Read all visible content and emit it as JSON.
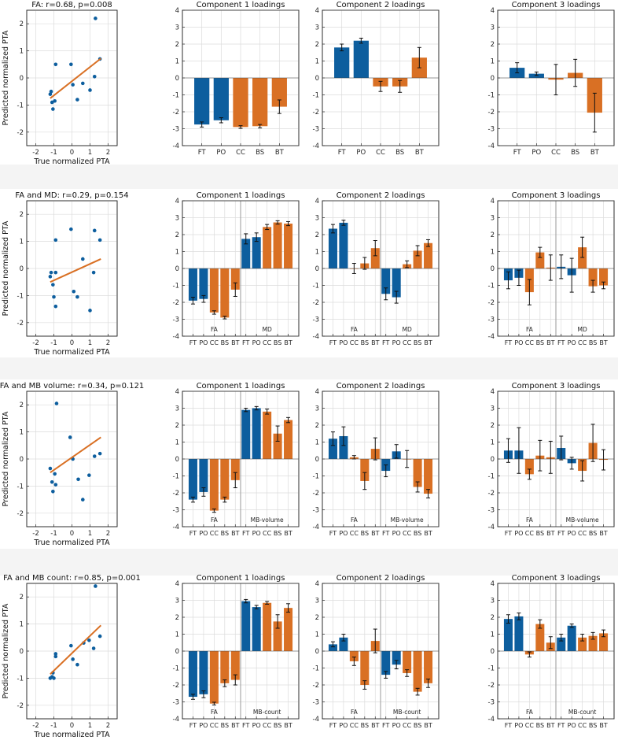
{
  "colors": {
    "blue": "#0d5e9e",
    "orange": "#d97024",
    "scatter": "#0d5e9e",
    "fit": "#d97024",
    "axis": "#262626",
    "grid": "#dcdcdc",
    "divider": "#9a9a9a",
    "band": "#f4f4f4"
  },
  "chart_data": [
    {
      "type": "scatter",
      "row": 0,
      "title": "FA: r=0.68, p=0.008",
      "xlabel": "True normalized PTA",
      "ylabel": "Predicted normalized PTA",
      "xlim": [
        -2.5,
        2.5
      ],
      "ylim": [
        -2.5,
        2.5
      ],
      "xticks": [
        -2,
        -1,
        0,
        1,
        2
      ],
      "yticks": [
        -2,
        -1,
        0,
        1,
        2
      ],
      "points": [
        [
          -1.2,
          -0.6
        ],
        [
          -1.15,
          -0.5
        ],
        [
          -1.1,
          -0.9
        ],
        [
          -1.05,
          -1.15
        ],
        [
          -0.95,
          -0.85
        ],
        [
          -0.9,
          0.5
        ],
        [
          -0.05,
          0.5
        ],
        [
          0.05,
          -0.25
        ],
        [
          0.3,
          -0.8
        ],
        [
          0.6,
          -0.2
        ],
        [
          1.0,
          -0.45
        ],
        [
          1.25,
          0.05
        ],
        [
          1.3,
          2.2
        ],
        [
          1.55,
          0.7
        ]
      ],
      "fit": {
        "x": [
          -1.2,
          1.6
        ],
        "y": [
          -0.75,
          0.72
        ]
      }
    },
    {
      "type": "bar",
      "row": 0,
      "title": "Component 1 loadings",
      "ylim": [
        -4,
        4
      ],
      "yticks": [
        -4,
        -3,
        -2,
        -1,
        0,
        1,
        2,
        3,
        4
      ],
      "categories": [
        "FT",
        "PO",
        "CC",
        "BS",
        "BT"
      ],
      "groups": [],
      "values": [
        -2.75,
        -2.5,
        -2.9,
        -2.85,
        -1.7
      ],
      "errors": [
        0.15,
        0.15,
        0.08,
        0.1,
        0.4
      ],
      "colors": [
        "blue",
        "blue",
        "orange",
        "orange",
        "orange"
      ]
    },
    {
      "type": "bar",
      "row": 0,
      "title": "Component 2 loadings",
      "ylim": [
        -4,
        4
      ],
      "yticks": [
        -4,
        -3,
        -2,
        -1,
        0,
        1,
        2,
        3,
        4
      ],
      "categories": [
        "FT",
        "PO",
        "CC",
        "BS",
        "BT"
      ],
      "groups": [],
      "values": [
        1.8,
        2.2,
        -0.5,
        -0.5,
        1.2
      ],
      "errors": [
        0.2,
        0.15,
        0.3,
        0.35,
        0.6
      ],
      "colors": [
        "blue",
        "blue",
        "orange",
        "orange",
        "orange"
      ]
    },
    {
      "type": "bar",
      "row": 0,
      "title": "Component 3 loadings",
      "ylim": [
        -4,
        4
      ],
      "yticks": [
        -4,
        -3,
        -2,
        -1,
        0,
        1,
        2,
        3,
        4
      ],
      "categories": [
        "FT",
        "PO",
        "CC",
        "BS",
        "BT"
      ],
      "groups": [],
      "values": [
        0.6,
        0.25,
        -0.1,
        0.3,
        -2.05
      ],
      "errors": [
        0.3,
        0.1,
        0.9,
        0.8,
        1.15
      ],
      "colors": [
        "blue",
        "blue",
        "orange",
        "orange",
        "orange"
      ]
    },
    {
      "type": "scatter",
      "row": 1,
      "title": "FA and MD: r=0.29, p=0.154",
      "xlabel": "True normalized PTA",
      "ylabel": "Predicted normalized PTA",
      "xlim": [
        -2.5,
        2.5
      ],
      "ylim": [
        -2.5,
        2.5
      ],
      "xticks": [
        -2,
        -1,
        0,
        1,
        2
      ],
      "yticks": [
        -2,
        -1,
        0,
        1,
        2
      ],
      "points": [
        [
          -1.2,
          -0.3
        ],
        [
          -1.15,
          -0.15
        ],
        [
          -1.05,
          -0.6
        ],
        [
          -1.0,
          -1.05
        ],
        [
          -0.9,
          -0.15
        ],
        [
          -0.9,
          1.05
        ],
        [
          -0.9,
          -1.4
        ],
        [
          -0.05,
          1.45
        ],
        [
          0.1,
          -0.85
        ],
        [
          0.3,
          -1.05
        ],
        [
          0.6,
          0.35
        ],
        [
          1.0,
          -1.55
        ],
        [
          1.2,
          -0.15
        ],
        [
          1.25,
          1.4
        ],
        [
          1.55,
          1.05
        ]
      ],
      "fit": {
        "x": [
          -1.2,
          1.6
        ],
        "y": [
          -0.5,
          0.35
        ]
      }
    },
    {
      "type": "bar",
      "row": 1,
      "title": "Component 1 loadings",
      "ylim": [
        -4,
        4
      ],
      "yticks": [
        -4,
        -3,
        -2,
        -1,
        0,
        1,
        2,
        3,
        4
      ],
      "categories": [
        "FT",
        "PO",
        "CC",
        "BS",
        "BT",
        "FT",
        "PO",
        "CC",
        "BS",
        "BT"
      ],
      "groups": [
        "FA",
        "MD"
      ],
      "values": [
        -1.9,
        -1.8,
        -2.6,
        -2.9,
        -1.25,
        1.75,
        1.85,
        2.45,
        2.72,
        2.65
      ],
      "errors": [
        0.2,
        0.2,
        0.1,
        0.08,
        0.4,
        0.3,
        0.25,
        0.15,
        0.1,
        0.12
      ],
      "colors": [
        "blue",
        "blue",
        "orange",
        "orange",
        "orange",
        "blue",
        "blue",
        "orange",
        "orange",
        "orange"
      ]
    },
    {
      "type": "bar",
      "row": 1,
      "title": "Component 2 loadings",
      "ylim": [
        -4,
        4
      ],
      "yticks": [
        -4,
        -3,
        -2,
        -1,
        0,
        1,
        2,
        3,
        4
      ],
      "categories": [
        "FT",
        "PO",
        "CC",
        "BS",
        "BT",
        "FT",
        "PO",
        "CC",
        "BS",
        "BT"
      ],
      "groups": [
        "FA",
        "MD"
      ],
      "values": [
        2.35,
        2.7,
        0.0,
        0.3,
        1.2,
        -1.5,
        -1.7,
        0.25,
        1.05,
        1.5
      ],
      "errors": [
        0.25,
        0.15,
        0.3,
        0.35,
        0.45,
        0.35,
        0.35,
        0.2,
        0.3,
        0.2
      ],
      "colors": [
        "blue",
        "blue",
        "orange",
        "orange",
        "orange",
        "blue",
        "blue",
        "orange",
        "orange",
        "orange"
      ]
    },
    {
      "type": "bar",
      "row": 1,
      "title": "Component 3 loadings",
      "ylim": [
        -4,
        4
      ],
      "yticks": [
        -4,
        -3,
        -2,
        -1,
        0,
        1,
        2,
        3,
        4
      ],
      "categories": [
        "FT",
        "PO",
        "CC",
        "BS",
        "BT",
        "FT",
        "PO",
        "CC",
        "BS",
        "BT"
      ],
      "groups": [
        "FA",
        "MD"
      ],
      "values": [
        -0.7,
        -0.55,
        -1.4,
        0.95,
        0.05,
        0.1,
        -0.4,
        1.25,
        -1.05,
        -1.0
      ],
      "errors": [
        0.5,
        0.45,
        0.75,
        0.3,
        0.75,
        0.7,
        1.0,
        0.6,
        0.35,
        0.2
      ],
      "colors": [
        "blue",
        "blue",
        "orange",
        "orange",
        "orange",
        "blue",
        "blue",
        "orange",
        "orange",
        "orange"
      ]
    },
    {
      "type": "scatter",
      "row": 2,
      "title": "FA and MB volume: r=0.34, p=0.121",
      "xlabel": "True normalized PTA",
      "ylabel": "Predicted normalized PTA",
      "xlim": [
        -2.5,
        2.5
      ],
      "ylim": [
        -2.5,
        2.5
      ],
      "xticks": [
        -2,
        -1,
        0,
        1,
        2
      ],
      "yticks": [
        -2,
        -1,
        0,
        1,
        2
      ],
      "points": [
        [
          -1.2,
          -0.35
        ],
        [
          -1.1,
          -0.85
        ],
        [
          -1.05,
          -1.2
        ],
        [
          -0.95,
          -0.55
        ],
        [
          -0.9,
          -0.95
        ],
        [
          -0.85,
          2.05
        ],
        [
          -0.1,
          0.8
        ],
        [
          0.05,
          0.0
        ],
        [
          0.35,
          -0.75
        ],
        [
          0.6,
          -1.5
        ],
        [
          0.95,
          -0.6
        ],
        [
          1.25,
          0.1
        ],
        [
          1.55,
          0.2
        ]
      ],
      "fit": {
        "x": [
          -1.2,
          1.6
        ],
        "y": [
          -0.5,
          0.8
        ]
      }
    },
    {
      "type": "bar",
      "row": 2,
      "title": "Component 1 loadings",
      "ylim": [
        -4,
        4
      ],
      "yticks": [
        -4,
        -3,
        -2,
        -1,
        0,
        1,
        2,
        3,
        4
      ],
      "categories": [
        "FT",
        "PO",
        "CC",
        "BS",
        "BT",
        "FT",
        "PO",
        "CC",
        "BS",
        "BT"
      ],
      "groups": [
        "FA",
        "MB-volume"
      ],
      "values": [
        -2.4,
        -1.95,
        -3.05,
        -2.4,
        -1.25,
        2.9,
        3.0,
        2.8,
        1.5,
        2.3
      ],
      "errors": [
        0.15,
        0.25,
        0.1,
        0.15,
        0.45,
        0.1,
        0.1,
        0.15,
        0.45,
        0.15
      ],
      "colors": [
        "blue",
        "blue",
        "orange",
        "orange",
        "orange",
        "blue",
        "blue",
        "orange",
        "orange",
        "orange"
      ]
    },
    {
      "type": "bar",
      "row": 2,
      "title": "Component 2 loadings",
      "ylim": [
        -4,
        4
      ],
      "yticks": [
        -4,
        -3,
        -2,
        -1,
        0,
        1,
        2,
        3,
        4
      ],
      "categories": [
        "FT",
        "PO",
        "CC",
        "BS",
        "BT",
        "FT",
        "PO",
        "CC",
        "BS",
        "BT"
      ],
      "groups": [
        "FA",
        "MB-volume"
      ],
      "values": [
        1.2,
        1.35,
        0.1,
        -1.3,
        0.6,
        -0.7,
        0.45,
        0.0,
        -1.65,
        -2.05
      ],
      "errors": [
        0.4,
        0.55,
        0.1,
        0.5,
        0.65,
        0.35,
        0.4,
        0.5,
        0.3,
        0.25
      ],
      "colors": [
        "blue",
        "blue",
        "orange",
        "orange",
        "orange",
        "blue",
        "blue",
        "orange",
        "orange",
        "orange"
      ]
    },
    {
      "type": "bar",
      "row": 2,
      "title": "Component 3 loadings",
      "ylim": [
        -4,
        4
      ],
      "yticks": [
        -4,
        -3,
        -2,
        -1,
        0,
        1,
        2,
        3,
        4
      ],
      "categories": [
        "FT",
        "PO",
        "CC",
        "BS",
        "BT",
        "FT",
        "PO",
        "CC",
        "BS",
        "BT"
      ],
      "groups": [
        "FA",
        "MB-volume"
      ],
      "values": [
        0.5,
        0.5,
        -0.9,
        0.2,
        0.1,
        0.65,
        -0.25,
        -0.7,
        0.95,
        -0.05
      ],
      "errors": [
        0.7,
        1.35,
        0.3,
        0.9,
        0.95,
        0.7,
        0.35,
        0.6,
        1.1,
        0.6
      ],
      "colors": [
        "blue",
        "blue",
        "orange",
        "orange",
        "orange",
        "blue",
        "blue",
        "orange",
        "orange",
        "orange"
      ]
    },
    {
      "type": "scatter",
      "row": 3,
      "title": "FA and MB count: r=0.85, p=0.001",
      "xlabel": "True normalized PTA",
      "ylabel": "Predicted normalized PTA",
      "xlim": [
        -2.5,
        2.5
      ],
      "ylim": [
        -2.5,
        2.5
      ],
      "xticks": [
        -2,
        -1,
        0,
        1,
        2
      ],
      "yticks": [
        -2,
        -1,
        0,
        1,
        2
      ],
      "points": [
        [
          -1.2,
          -1.0
        ],
        [
          -1.1,
          -0.95
        ],
        [
          -1.05,
          -0.8
        ],
        [
          -1.0,
          -1.0
        ],
        [
          -0.9,
          -0.2
        ],
        [
          -0.9,
          -0.1
        ],
        [
          -0.05,
          0.2
        ],
        [
          0.05,
          -0.3
        ],
        [
          0.3,
          -0.5
        ],
        [
          0.65,
          0.3
        ],
        [
          0.95,
          0.4
        ],
        [
          1.2,
          0.1
        ],
        [
          1.3,
          2.4
        ],
        [
          1.55,
          0.55
        ]
      ],
      "fit": {
        "x": [
          -1.2,
          1.6
        ],
        "y": [
          -0.85,
          0.95
        ]
      }
    },
    {
      "type": "bar",
      "row": 3,
      "title": "Component 1 loadings",
      "ylim": [
        -4,
        4
      ],
      "yticks": [
        -4,
        -3,
        -2,
        -1,
        0,
        1,
        2,
        3,
        4
      ],
      "categories": [
        "FT",
        "PO",
        "CC",
        "BS",
        "BT",
        "FT",
        "PO",
        "CC",
        "BS",
        "BT"
      ],
      "groups": [
        "FA",
        "MB-count"
      ],
      "values": [
        -2.7,
        -2.55,
        -3.1,
        -1.9,
        -1.7,
        2.95,
        2.6,
        2.85,
        1.75,
        2.55
      ],
      "errors": [
        0.15,
        0.2,
        0.08,
        0.2,
        0.3,
        0.1,
        0.1,
        0.08,
        0.4,
        0.25
      ],
      "colors": [
        "blue",
        "blue",
        "orange",
        "orange",
        "orange",
        "blue",
        "blue",
        "orange",
        "orange",
        "orange"
      ]
    },
    {
      "type": "bar",
      "row": 3,
      "title": "Component 2 loadings",
      "ylim": [
        -4,
        4
      ],
      "yticks": [
        -4,
        -3,
        -2,
        -1,
        0,
        1,
        2,
        3,
        4
      ],
      "categories": [
        "FT",
        "PO",
        "CC",
        "BS",
        "BT",
        "FT",
        "PO",
        "CC",
        "BS",
        "BT"
      ],
      "groups": [
        "FA",
        "MB-count"
      ],
      "values": [
        0.4,
        0.8,
        -0.6,
        -2.0,
        0.6,
        -1.4,
        -0.8,
        -1.3,
        -2.4,
        -1.9
      ],
      "errors": [
        0.15,
        0.2,
        0.25,
        0.25,
        0.7,
        0.2,
        0.25,
        0.2,
        0.2,
        0.25
      ],
      "colors": [
        "blue",
        "blue",
        "orange",
        "orange",
        "orange",
        "blue",
        "blue",
        "orange",
        "orange",
        "orange"
      ]
    },
    {
      "type": "bar",
      "row": 3,
      "title": "Component 3 loadings",
      "ylim": [
        -4,
        4
      ],
      "yticks": [
        -4,
        -3,
        -2,
        -1,
        0,
        1,
        2,
        3,
        4
      ],
      "categories": [
        "FT",
        "PO",
        "CC",
        "BS",
        "BT",
        "FT",
        "PO",
        "CC",
        "BS",
        "BT"
      ],
      "groups": [
        "FA",
        "MB-count"
      ],
      "values": [
        1.9,
        2.05,
        -0.2,
        1.6,
        0.5,
        0.8,
        1.5,
        0.8,
        0.9,
        1.05
      ],
      "errors": [
        0.25,
        0.2,
        0.15,
        0.25,
        0.35,
        0.2,
        0.1,
        0.2,
        0.2,
        0.2
      ],
      "colors": [
        "blue",
        "blue",
        "orange",
        "orange",
        "orange",
        "blue",
        "blue",
        "orange",
        "orange",
        "orange"
      ]
    }
  ]
}
